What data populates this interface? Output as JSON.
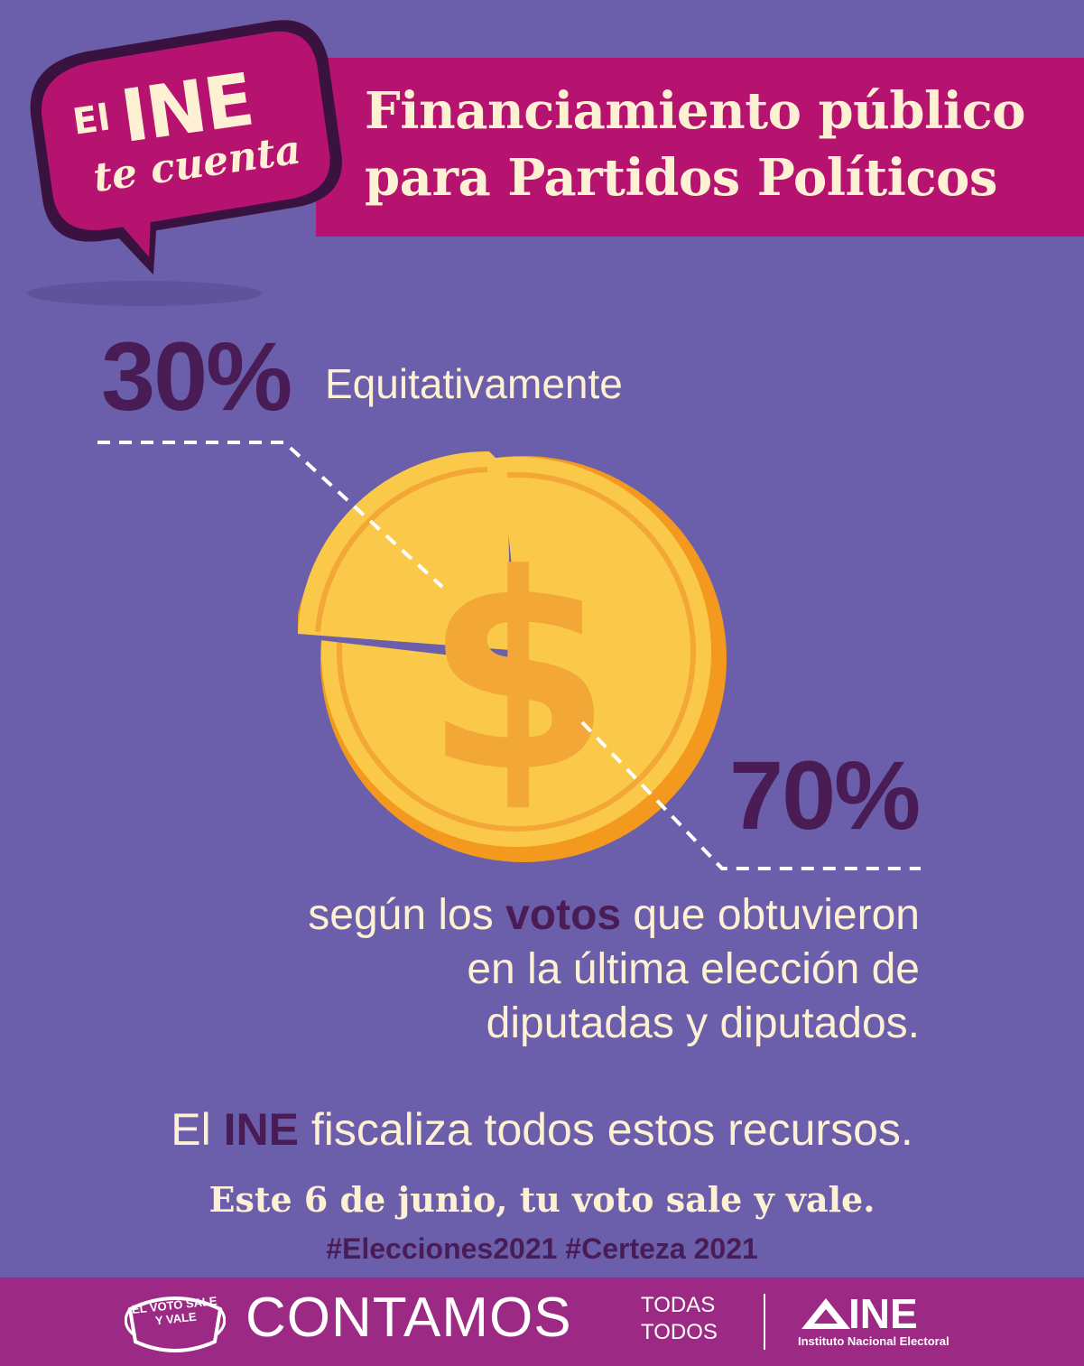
{
  "header": {
    "title_line1": "Financiamiento público",
    "title_line2": "para Partidos Políticos"
  },
  "bubble": {
    "el": "El",
    "ine": "INE",
    "te_cuenta": "te cuenta"
  },
  "split": {
    "equal_pct": "30%",
    "equal_label": "Equitativamente",
    "votes_pct": "70%",
    "votes_text_1": "según los ",
    "votes_highlight": "votos",
    "votes_text_2": " que obtuvieron",
    "votes_line2": "en la última elección de",
    "votes_line3": "diputadas y diputados."
  },
  "audit": {
    "prefix": "El ",
    "ine": "INE",
    "suffix": " fiscaliza todos estos recursos."
  },
  "slogan": "Este 6 de junio, tu voto sale y vale.",
  "hashtags": "#Elecciones2021 #Certeza 2021",
  "footer": {
    "badge": "EL VOTO SALE Y VALE",
    "contamos": "CONTAMOS",
    "todas": "TODAS",
    "todos": "TODOS",
    "ine": "INE",
    "ine_full": "Instituto Nacional Electoral"
  },
  "colors": {
    "background": "#6b5fab",
    "banner": "#b5136f",
    "accent_dark": "#4a1c55",
    "cream": "#fdf0d3",
    "footer": "#9c2a84",
    "coin": "#fbc94a"
  }
}
